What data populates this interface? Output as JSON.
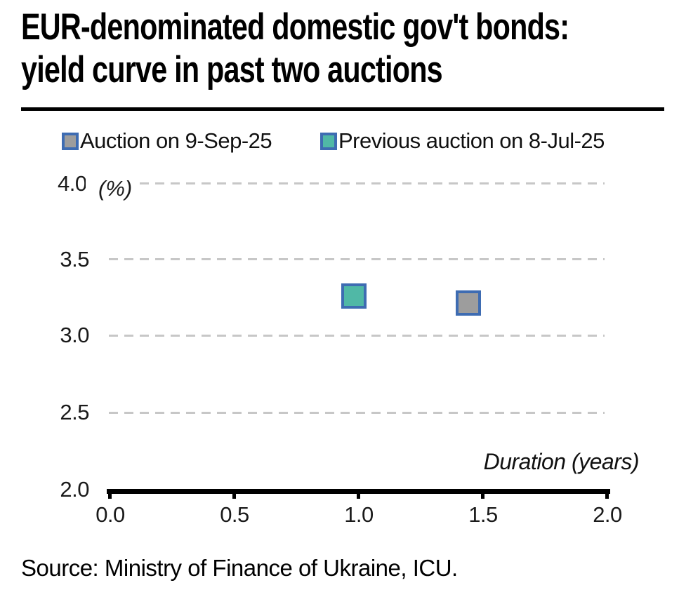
{
  "title": {
    "line1": "EUR-denominated domestic gov't bonds:",
    "line2": "yield curve in past two auctions"
  },
  "legend": {
    "items": [
      {
        "label": "Auction on 9-Sep-25",
        "fill": "#9d9d9d",
        "border": "#3e6cb2"
      },
      {
        "label": "Previous auction on 8-Jul-25",
        "fill": "#50b8a6",
        "border": "#3e6cb2"
      }
    ]
  },
  "source_note": "Source: Ministry of Finance of Ukraine, ICU.",
  "chart_data": {
    "type": "scatter",
    "title": "EUR-denominated domestic gov't bonds: yield curve in past two auctions",
    "xlabel": "Duration (years)",
    "ylabel": "(%)",
    "xlim": [
      0.0,
      2.0
    ],
    "ylim": [
      2.0,
      4.0
    ],
    "xticks": [
      "0.0",
      "0.5",
      "1.0",
      "1.5",
      "2.0"
    ],
    "yticks": [
      "4.0",
      "3.5",
      "3.0",
      "2.5",
      "2.0"
    ],
    "grid": "horizontal dashed",
    "legend_position": "top",
    "marker_shape": "square",
    "series": [
      {
        "name": "Auction on 9-Sep-25",
        "fill": "#9d9d9d",
        "border": "#3e6cb2",
        "points": [
          {
            "x": 1.44,
            "y": 3.21
          }
        ]
      },
      {
        "name": "Previous auction on 8-Jul-25",
        "fill": "#50b8a6",
        "border": "#3e6cb2",
        "points": [
          {
            "x": 0.98,
            "y": 3.26
          }
        ]
      }
    ]
  }
}
